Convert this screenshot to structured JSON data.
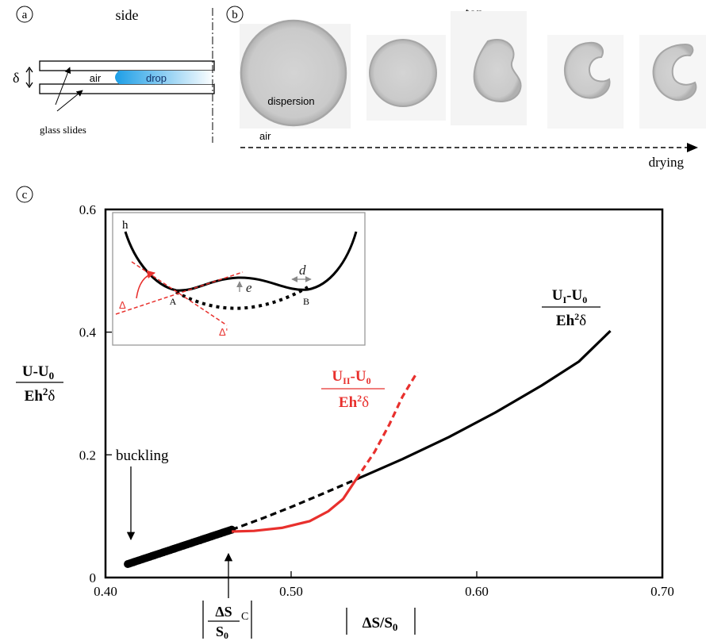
{
  "panel_a": {
    "letter": "a",
    "title": "side",
    "gap_symbol": "δ",
    "air_label": "air",
    "drop_label": "drop",
    "slides_label": "glass slides"
  },
  "panel_b": {
    "letter": "b",
    "title": "top",
    "dispersion_label": "dispersion",
    "air_label": "air",
    "time_label": "drying",
    "drop_count": 5
  },
  "panel_c": {
    "letter": "c",
    "ylabel_num": "U-U",
    "ylabel_num_sub": "0",
    "ylabel_den": "Eh",
    "ylabel_den_sup": "2",
    "ylabel_den_tail": "δ",
    "xlabel_main": "ΔS/S",
    "xlabel_sub": "0",
    "crit_num": "ΔS",
    "crit_sub_c": "C",
    "crit_den": "S",
    "crit_den_sub": "0",
    "buckling_label": "buckling",
    "label_UI_num": "U",
    "label_UI_sub": "I",
    "label_UI_tail": "-U",
    "label_UI_tail_sub": "0",
    "label_UII_num": "U",
    "label_UII_sub": "II",
    "label_UII_tail": "-U",
    "label_UII_tail_sub": "0",
    "label_den": "Eh",
    "label_den_sup": "2",
    "label_den_tail": "δ",
    "colors": {
      "branch_I": "#000000",
      "branch_II": "#e8302d"
    }
  },
  "inset": {
    "h_label": "h",
    "e_label": "e",
    "d_label": "d",
    "A_label": "A",
    "B_label": "B",
    "delta_label": "Δ",
    "delta_prime_label": "Δ'"
  },
  "chart_data": {
    "type": "line",
    "xlabel": "|ΔS/S0|",
    "ylabel": "(U-U0)/(Eh²δ)",
    "xlim": [
      0.4,
      0.7
    ],
    "ylim": [
      0,
      0.6
    ],
    "x_ticks": [
      "0.40",
      "0.50",
      "0.60",
      "0.70"
    ],
    "y_ticks": [
      "0",
      "0.2",
      "0.4",
      "0.6"
    ],
    "x_tick_values": [
      0.4,
      0.5,
      0.6,
      0.7
    ],
    "y_tick_values": [
      0,
      0.2,
      0.4,
      0.6
    ],
    "critical_x": 0.468,
    "buckling_x": 0.413,
    "series": [
      {
        "name": "(UI-U0)/(Eh²δ)",
        "style": "dots",
        "x": [
          0.412,
          0.416,
          0.42,
          0.424,
          0.428,
          0.432,
          0.436,
          0.44,
          0.444,
          0.448,
          0.452,
          0.456,
          0.46,
          0.464,
          0.468
        ],
        "y": [
          0.022,
          0.026,
          0.03,
          0.034,
          0.038,
          0.042,
          0.046,
          0.05,
          0.054,
          0.058,
          0.062,
          0.066,
          0.07,
          0.074,
          0.078
        ]
      },
      {
        "name": "(UI-U0)/(Eh²δ)",
        "style": "dashed-black",
        "x": [
          0.468,
          0.485,
          0.5,
          0.515,
          0.535
        ],
        "y": [
          0.078,
          0.097,
          0.115,
          0.134,
          0.16
        ]
      },
      {
        "name": "(UI-U0)/(Eh²δ)",
        "style": "solid-black",
        "x": [
          0.535,
          0.56,
          0.585,
          0.61,
          0.635,
          0.655,
          0.672
        ],
        "y": [
          0.16,
          0.193,
          0.229,
          0.269,
          0.313,
          0.352,
          0.402
        ]
      },
      {
        "name": "(UII-U0)/(Eh²δ)",
        "style": "solid-red",
        "x": [
          0.468,
          0.48,
          0.495,
          0.51,
          0.52,
          0.528,
          0.535
        ],
        "y": [
          0.075,
          0.076,
          0.081,
          0.092,
          0.108,
          0.128,
          0.16
        ]
      },
      {
        "name": "(UII-U0)/(Eh²δ)",
        "style": "dashed-red",
        "x": [
          0.535,
          0.545,
          0.553,
          0.56,
          0.568
        ],
        "y": [
          0.16,
          0.205,
          0.25,
          0.295,
          0.335
        ]
      }
    ]
  }
}
